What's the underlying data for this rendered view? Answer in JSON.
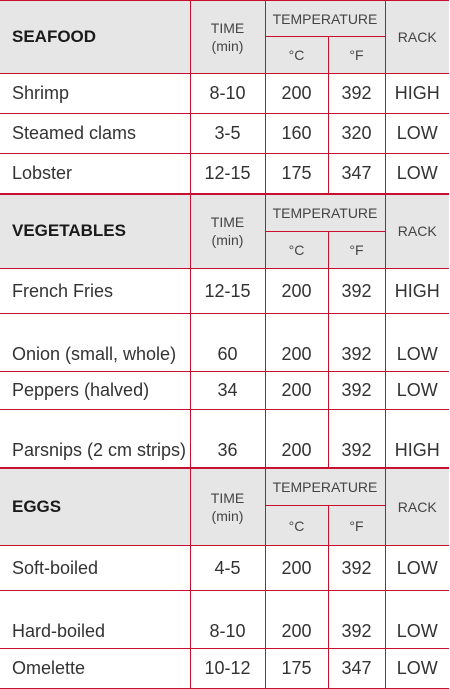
{
  "headers": {
    "time": "TIME",
    "time_unit": "(min)",
    "temperature": "TEMPERATURE",
    "celsius": "°C",
    "fahrenheit": "°F",
    "rack": "RACK"
  },
  "sections": [
    {
      "title": "SEAFOOD",
      "rows": [
        {
          "name": "Shrimp",
          "time": "8-10",
          "c": "200",
          "f": "392",
          "rack": "HIGH"
        },
        {
          "name": "Steamed clams",
          "time": "3-5",
          "c": "160",
          "f": "320",
          "rack": "LOW"
        },
        {
          "name": "Lobster",
          "time": "12-15",
          "c": "175",
          "f": "347",
          "rack": "LOW"
        }
      ]
    },
    {
      "title": "VEGETABLES",
      "rows": [
        {
          "name": "French Fries",
          "time": "12-15",
          "c": "200",
          "f": "392",
          "rack": "HIGH"
        },
        {
          "name": "Onion (small, whole)",
          "time": "60",
          "c": "200",
          "f": "392",
          "rack": "LOW"
        },
        {
          "name": "Peppers (halved)",
          "time": "34",
          "c": "200",
          "f": "392",
          "rack": "LOW"
        },
        {
          "name": "Parsnips (2 cm strips)",
          "time": "36",
          "c": "200",
          "f": "392",
          "rack": "HIGH"
        }
      ]
    },
    {
      "title": "EGGS",
      "rows": [
        {
          "name": "Soft-boiled",
          "time": "4-5",
          "c": "200",
          "f": "392",
          "rack": "LOW"
        },
        {
          "name": "Hard-boiled",
          "time": "8-10",
          "c": "200",
          "f": "392",
          "rack": "LOW"
        },
        {
          "name": "Omelette",
          "time": "10-12",
          "c": "175",
          "f": "347",
          "rack": "LOW"
        }
      ]
    }
  ],
  "colors": {
    "border": "#c8102e",
    "header_bg": "#e6e6e6",
    "text": "#333333"
  }
}
